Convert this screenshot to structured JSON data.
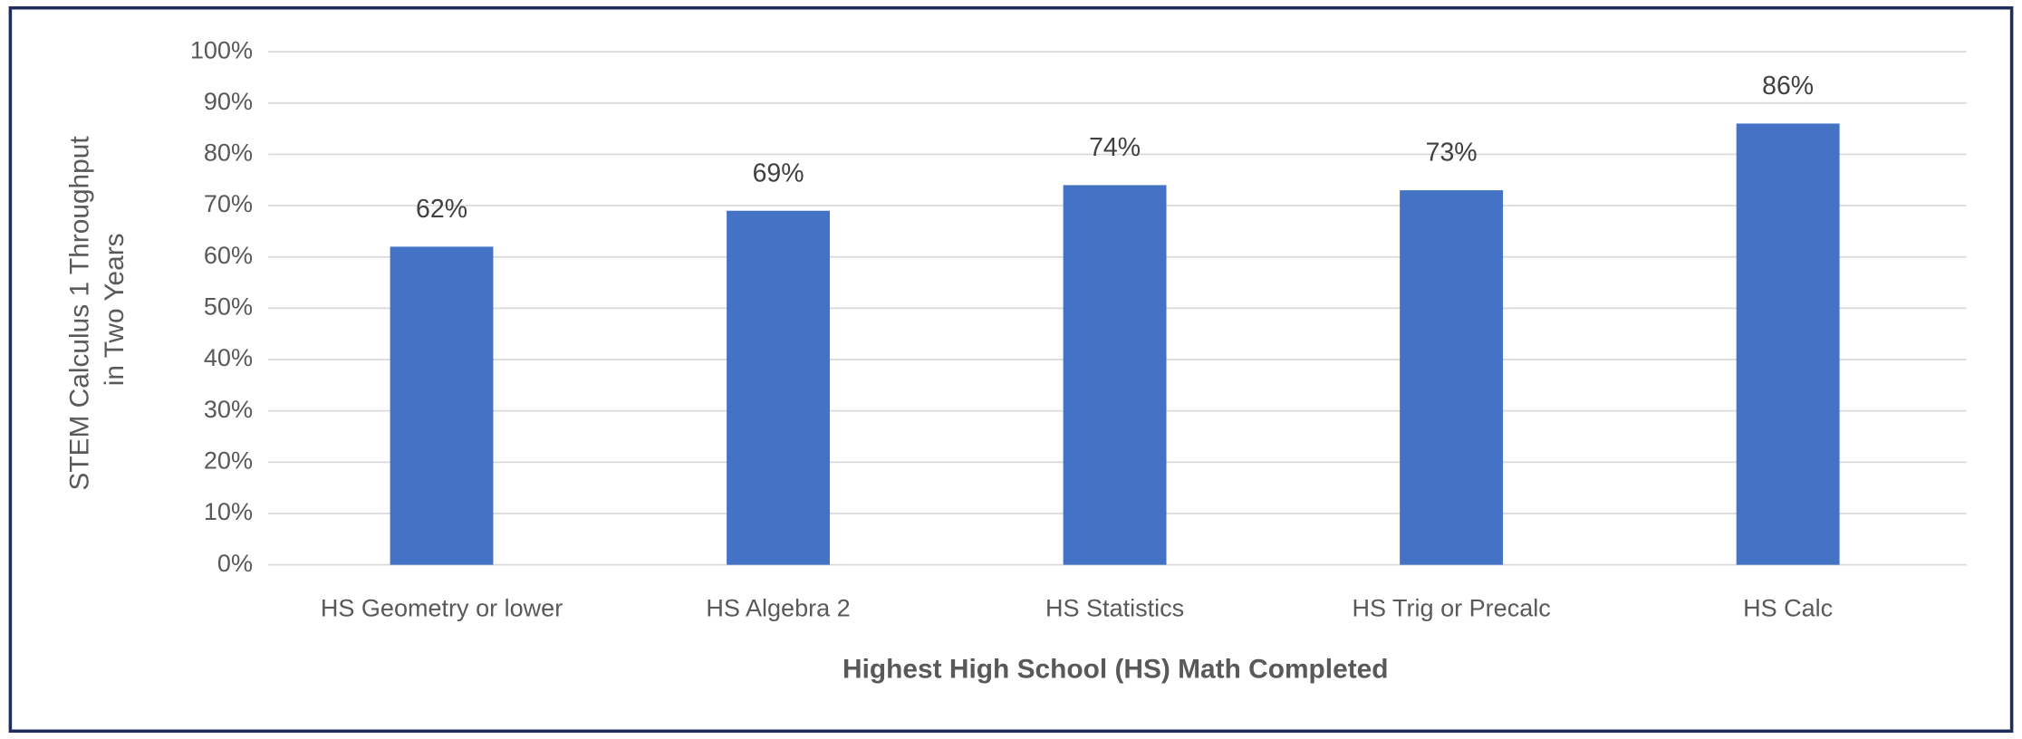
{
  "chart_data": {
    "type": "bar",
    "categories": [
      "HS Geometry or lower",
      "HS Algebra 2",
      "HS Statistics",
      "HS Trig or Precalc",
      "HS Calc"
    ],
    "values": [
      62,
      69,
      74,
      73,
      86
    ],
    "value_labels": [
      "62%",
      "69%",
      "74%",
      "73%",
      "86%"
    ],
    "color": "#4472c4",
    "xlabel": "Highest High School (HS) Math Completed",
    "ylabel": [
      "STEM Calculus 1 Throughput",
      "in Two Years"
    ],
    "ylim": [
      0,
      100
    ],
    "yticks": [
      {
        "value": 0,
        "label": "0%"
      },
      {
        "value": 10,
        "label": "10%"
      },
      {
        "value": 20,
        "label": "20%"
      },
      {
        "value": 30,
        "label": "30%"
      },
      {
        "value": 40,
        "label": "40%"
      },
      {
        "value": 50,
        "label": "50%"
      },
      {
        "value": 60,
        "label": "60%"
      },
      {
        "value": 70,
        "label": "70%"
      },
      {
        "value": 80,
        "label": "80%"
      },
      {
        "value": 90,
        "label": "90%"
      },
      {
        "value": 100,
        "label": "100%"
      }
    ],
    "grid": true
  }
}
